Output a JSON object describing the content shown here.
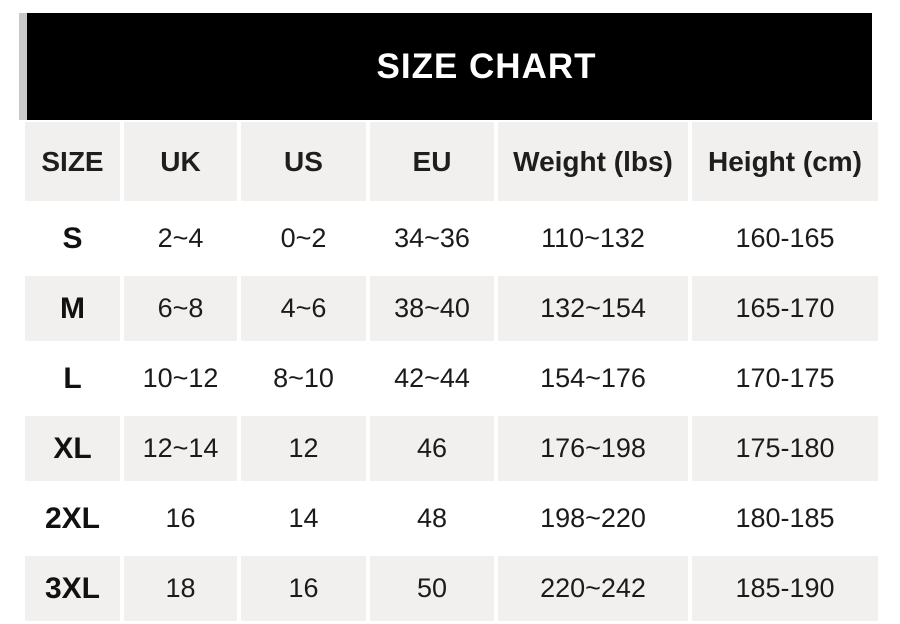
{
  "title_bar": {
    "title": "SIZE CHART"
  },
  "chart_data": {
    "type": "table",
    "title": "SIZE CHART",
    "columns": [
      "SIZE",
      "UK",
      "US",
      "EU",
      "Weight (lbs)",
      "Height (cm)"
    ],
    "rows": [
      [
        "S",
        "2~4",
        "0~2",
        "34~36",
        "110~132",
        "160-165"
      ],
      [
        "M",
        "6~8",
        "4~6",
        "38~40",
        "132~154",
        "165-170"
      ],
      [
        "L",
        "10~12",
        "8~10",
        "42~44",
        "154~176",
        "170-175"
      ],
      [
        "XL",
        "12~14",
        "12",
        "46",
        "176~198",
        "175-180"
      ],
      [
        "2XL",
        "16",
        "14",
        "48",
        "198~220",
        "180-185"
      ],
      [
        "3XL",
        "18",
        "16",
        "50",
        "220~242",
        "185-190"
      ]
    ]
  },
  "colors": {
    "banner_bg": "#000000",
    "banner_text": "#ffffff",
    "stripe_bg": "#f1f0ee",
    "accent_strip": "#c9c9c9",
    "text": "#1b1b1b"
  }
}
